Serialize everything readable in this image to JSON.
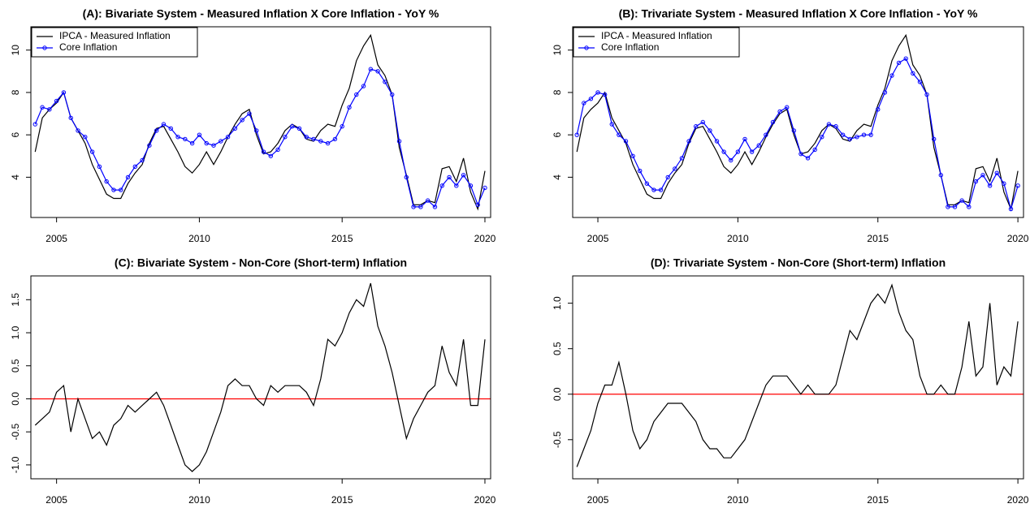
{
  "chart_data": [
    {
      "type": "line",
      "title": "(A): Bivariate System - Measured Inflation X Core Inflation - YoY %",
      "x": [
        2004.25,
        2004.5,
        2004.75,
        2005,
        2005.25,
        2005.5,
        2005.75,
        2006,
        2006.25,
        2006.5,
        2006.75,
        2007,
        2007.25,
        2007.5,
        2007.75,
        2008,
        2008.25,
        2008.5,
        2008.75,
        2009,
        2009.25,
        2009.5,
        2009.75,
        2010,
        2010.25,
        2010.5,
        2010.75,
        2011,
        2011.25,
        2011.5,
        2011.75,
        2012,
        2012.25,
        2012.5,
        2012.75,
        2013,
        2013.25,
        2013.5,
        2013.75,
        2014,
        2014.25,
        2014.5,
        2014.75,
        2015,
        2015.25,
        2015.5,
        2015.75,
        2016,
        2016.25,
        2016.5,
        2016.75,
        2017,
        2017.25,
        2017.5,
        2017.75,
        2018,
        2018.25,
        2018.5,
        2018.75,
        2019,
        2019.25,
        2019.5,
        2019.75,
        2020
      ],
      "series": [
        {
          "name": "IPCA - Measured Inflation",
          "color": "#000000",
          "marker": "none",
          "values": [
            5.2,
            6.8,
            7.2,
            7.5,
            8.0,
            6.8,
            6.2,
            5.6,
            4.6,
            3.9,
            3.2,
            3.0,
            3.0,
            3.7,
            4.2,
            4.6,
            5.6,
            6.3,
            6.4,
            5.8,
            5.2,
            4.5,
            4.2,
            4.6,
            5.2,
            4.6,
            5.2,
            5.9,
            6.5,
            7.0,
            7.2,
            6.0,
            5.1,
            5.2,
            5.6,
            6.2,
            6.5,
            6.3,
            5.8,
            5.7,
            6.2,
            6.5,
            6.4,
            7.4,
            8.2,
            9.5,
            10.2,
            10.7,
            9.3,
            8.8,
            7.9,
            5.4,
            4.1,
            2.7,
            2.7,
            2.9,
            2.8,
            4.4,
            4.5,
            3.8,
            4.9,
            3.3,
            2.5,
            4.3
          ]
        },
        {
          "name": "Core Inflation",
          "color": "#0000ff",
          "marker": "circle",
          "values": [
            6.5,
            7.3,
            7.2,
            7.6,
            8.0,
            6.8,
            6.2,
            5.9,
            5.2,
            4.5,
            3.8,
            3.4,
            3.4,
            4.0,
            4.5,
            4.8,
            5.5,
            6.2,
            6.5,
            6.3,
            5.9,
            5.8,
            5.6,
            6.0,
            5.6,
            5.5,
            5.7,
            5.9,
            6.3,
            6.7,
            7.0,
            6.2,
            5.2,
            5.0,
            5.3,
            5.9,
            6.4,
            6.3,
            5.9,
            5.8,
            5.7,
            5.6,
            5.8,
            6.4,
            7.3,
            7.9,
            8.3,
            9.1,
            9.0,
            8.5,
            7.9,
            5.7,
            4.0,
            2.6,
            2.6,
            2.9,
            2.6,
            3.6,
            4.0,
            3.6,
            4.1,
            3.6,
            2.7,
            3.5
          ]
        }
      ],
      "xlim": [
        2004.1,
        2020.2
      ],
      "xticks": [
        2005,
        2010,
        2015,
        2020
      ],
      "ylim": [
        2.1,
        11.1
      ],
      "yticks": [
        4,
        6,
        8,
        10
      ],
      "legend": "top-left"
    },
    {
      "type": "line",
      "title": "(B): Trivariate System - Measured Inflation X Core Inflation - YoY %",
      "x": [
        2004.25,
        2004.5,
        2004.75,
        2005,
        2005.25,
        2005.5,
        2005.75,
        2006,
        2006.25,
        2006.5,
        2006.75,
        2007,
        2007.25,
        2007.5,
        2007.75,
        2008,
        2008.25,
        2008.5,
        2008.75,
        2009,
        2009.25,
        2009.5,
        2009.75,
        2010,
        2010.25,
        2010.5,
        2010.75,
        2011,
        2011.25,
        2011.5,
        2011.75,
        2012,
        2012.25,
        2012.5,
        2012.75,
        2013,
        2013.25,
        2013.5,
        2013.75,
        2014,
        2014.25,
        2014.5,
        2014.75,
        2015,
        2015.25,
        2015.5,
        2015.75,
        2016,
        2016.25,
        2016.5,
        2016.75,
        2017,
        2017.25,
        2017.5,
        2017.75,
        2018,
        2018.25,
        2018.5,
        2018.75,
        2019,
        2019.25,
        2019.5,
        2019.75,
        2020
      ],
      "series": [
        {
          "name": "IPCA - Measured Inflation",
          "color": "#000000",
          "marker": "none",
          "values": [
            5.2,
            6.8,
            7.2,
            7.5,
            8.0,
            6.8,
            6.2,
            5.6,
            4.6,
            3.9,
            3.2,
            3.0,
            3.0,
            3.7,
            4.2,
            4.6,
            5.6,
            6.3,
            6.4,
            5.8,
            5.2,
            4.5,
            4.2,
            4.6,
            5.2,
            4.6,
            5.2,
            5.9,
            6.5,
            7.0,
            7.2,
            6.0,
            5.1,
            5.2,
            5.6,
            6.2,
            6.5,
            6.3,
            5.8,
            5.7,
            6.2,
            6.5,
            6.4,
            7.4,
            8.2,
            9.5,
            10.2,
            10.7,
            9.3,
            8.8,
            7.9,
            5.4,
            4.1,
            2.7,
            2.7,
            2.9,
            2.8,
            4.4,
            4.5,
            3.8,
            4.9,
            3.3,
            2.5,
            4.3
          ]
        },
        {
          "name": "Core Inflation",
          "color": "#0000ff",
          "marker": "circle",
          "values": [
            6.0,
            7.5,
            7.7,
            8.0,
            7.9,
            6.5,
            6.0,
            5.7,
            5.0,
            4.3,
            3.7,
            3.4,
            3.4,
            4.0,
            4.4,
            4.9,
            5.7,
            6.4,
            6.6,
            6.2,
            5.7,
            5.2,
            4.8,
            5.2,
            5.8,
            5.2,
            5.5,
            6.0,
            6.6,
            7.1,
            7.3,
            6.2,
            5.1,
            4.9,
            5.3,
            5.9,
            6.5,
            6.4,
            6.0,
            5.8,
            5.9,
            6.0,
            6.0,
            7.2,
            8.0,
            8.8,
            9.4,
            9.6,
            8.9,
            8.5,
            7.9,
            5.8,
            4.1,
            2.6,
            2.6,
            2.9,
            2.6,
            3.8,
            4.1,
            3.6,
            4.2,
            3.7,
            2.5,
            3.6
          ]
        }
      ],
      "xlim": [
        2004.1,
        2020.2
      ],
      "xticks": [
        2005,
        2010,
        2015,
        2020
      ],
      "ylim": [
        2.1,
        11.1
      ],
      "yticks": [
        4,
        6,
        8,
        10
      ],
      "legend": "top-left"
    },
    {
      "type": "line",
      "title": "(C): Bivariate System - Non-Core (Short-term) Inflation",
      "x": [
        2004.25,
        2004.5,
        2004.75,
        2005,
        2005.25,
        2005.5,
        2005.75,
        2006,
        2006.25,
        2006.5,
        2006.75,
        2007,
        2007.25,
        2007.5,
        2007.75,
        2008,
        2008.25,
        2008.5,
        2008.75,
        2009,
        2009.25,
        2009.5,
        2009.75,
        2010,
        2010.25,
        2010.5,
        2010.75,
        2011,
        2011.25,
        2011.5,
        2011.75,
        2012,
        2012.25,
        2012.5,
        2012.75,
        2013,
        2013.25,
        2013.5,
        2013.75,
        2014,
        2014.25,
        2014.5,
        2014.75,
        2015,
        2015.25,
        2015.5,
        2015.75,
        2016,
        2016.25,
        2016.5,
        2016.75,
        2017,
        2017.25,
        2017.5,
        2017.75,
        2018,
        2018.25,
        2018.5,
        2018.75,
        2019,
        2019.25,
        2019.5,
        2019.75,
        2020
      ],
      "series": [
        {
          "color": "#000000",
          "marker": "none",
          "values": [
            -0.4,
            -0.3,
            -0.2,
            0.1,
            0.2,
            -0.5,
            0.0,
            -0.3,
            -0.6,
            -0.5,
            -0.7,
            -0.4,
            -0.3,
            -0.1,
            -0.2,
            -0.1,
            0.0,
            0.1,
            -0.1,
            -0.4,
            -0.7,
            -1.0,
            -1.1,
            -1.0,
            -0.8,
            -0.5,
            -0.2,
            0.2,
            0.3,
            0.2,
            0.2,
            0.0,
            -0.1,
            0.2,
            0.1,
            0.2,
            0.2,
            0.2,
            0.1,
            -0.1,
            0.3,
            0.9,
            0.8,
            1.0,
            1.3,
            1.5,
            1.4,
            1.75,
            1.1,
            0.8,
            0.4,
            -0.1,
            -0.6,
            -0.3,
            -0.1,
            0.1,
            0.2,
            0.8,
            0.4,
            0.2,
            0.9,
            -0.1,
            -0.1,
            0.9
          ]
        }
      ],
      "xlim": [
        2004.1,
        2020.2
      ],
      "xticks": [
        2005,
        2010,
        2015,
        2020
      ],
      "ylim": [
        -1.21,
        1.86
      ],
      "yticks": [
        {
          "value": -1,
          "label": "-1.0"
        },
        {
          "value": -0.5,
          "label": "-0.5"
        },
        {
          "value": 0,
          "label": "0.0"
        },
        {
          "value": 0.5,
          "label": "0.5"
        },
        {
          "value": 1,
          "label": "1.0"
        },
        {
          "value": 1.5,
          "label": "1.5"
        }
      ],
      "hline": 0,
      "hline_color": "#ff0000"
    },
    {
      "type": "line",
      "title": "(D): Trivariate System - Non-Core (Short-term) Inflation",
      "x": [
        2004.25,
        2004.5,
        2004.75,
        2005,
        2005.25,
        2005.5,
        2005.75,
        2006,
        2006.25,
        2006.5,
        2006.75,
        2007,
        2007.25,
        2007.5,
        2007.75,
        2008,
        2008.25,
        2008.5,
        2008.75,
        2009,
        2009.25,
        2009.5,
        2009.75,
        2010,
        2010.25,
        2010.5,
        2010.75,
        2011,
        2011.25,
        2011.5,
        2011.75,
        2012,
        2012.25,
        2012.5,
        2012.75,
        2013,
        2013.25,
        2013.5,
        2013.75,
        2014,
        2014.25,
        2014.5,
        2014.75,
        2015,
        2015.25,
        2015.5,
        2015.75,
        2016,
        2016.25,
        2016.5,
        2016.75,
        2017,
        2017.25,
        2017.5,
        2017.75,
        2018,
        2018.25,
        2018.5,
        2018.75,
        2019,
        2019.25,
        2019.5,
        2019.75,
        2020
      ],
      "series": [
        {
          "color": "#000000",
          "marker": "none",
          "values": [
            -0.8,
            -0.6,
            -0.4,
            -0.1,
            0.1,
            0.1,
            0.35,
            0.0,
            -0.4,
            -0.6,
            -0.5,
            -0.3,
            -0.2,
            -0.1,
            -0.1,
            -0.1,
            -0.2,
            -0.3,
            -0.5,
            -0.6,
            -0.6,
            -0.7,
            -0.7,
            -0.6,
            -0.5,
            -0.3,
            -0.1,
            0.1,
            0.2,
            0.2,
            0.2,
            0.1,
            0.0,
            0.1,
            0.0,
            0.0,
            0.0,
            0.1,
            0.4,
            0.7,
            0.6,
            0.8,
            1.0,
            1.1,
            1.0,
            1.2,
            0.9,
            0.7,
            0.6,
            0.2,
            0.0,
            0.0,
            0.1,
            0.0,
            0.0,
            0.3,
            0.8,
            0.2,
            0.3,
            1.0,
            0.1,
            0.3,
            0.2,
            0.8
          ]
        }
      ],
      "xlim": [
        2004.1,
        2020.2
      ],
      "xticks": [
        2005,
        2010,
        2015,
        2020
      ],
      "ylim": [
        -0.93,
        1.3
      ],
      "yticks": [
        {
          "value": -0.5,
          "label": "-0.5"
        },
        {
          "value": 0,
          "label": "0.0"
        },
        {
          "value": 0.5,
          "label": "0.5"
        },
        {
          "value": 1,
          "label": "1.0"
        }
      ],
      "hline": 0,
      "hline_color": "#ff0000"
    }
  ]
}
